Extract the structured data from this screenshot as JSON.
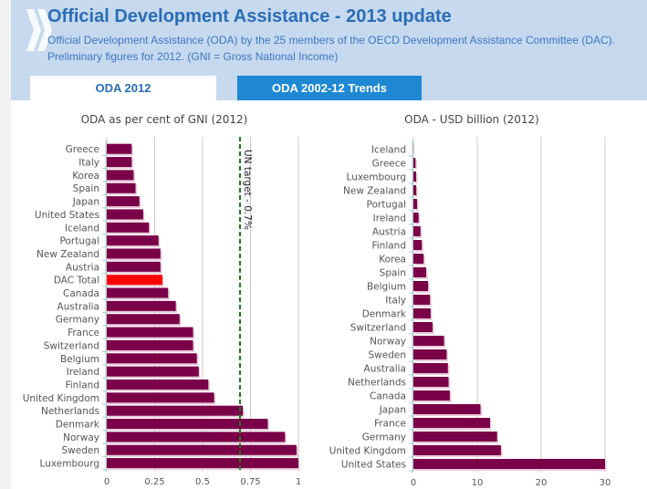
{
  "header": {
    "title": "Official Development Assistance - 2013 update",
    "subtitle": "Official Development Assistance (ODA) by the 25 members of the OECD Development Assistance Committee (DAC). Preliminary figures for 2012. (GNI = Gross National Income)",
    "logo_icon": "chevrons-right-icon"
  },
  "tabs": [
    {
      "label": "ODA 2012",
      "active": true
    },
    {
      "label": "ODA 2002-12 Trends",
      "active": false
    }
  ],
  "colors": {
    "bar": "#7a0048",
    "highlight": "#ff0000",
    "target_line": "#1a7a1a",
    "header_bg": "#c6d9ef",
    "title": "#2a6db5",
    "tab_inactive": "#1e88d3"
  },
  "chart_data": [
    {
      "type": "bar",
      "orientation": "horizontal",
      "title": "ODA as per cent of GNI (2012)",
      "xlabel": "",
      "ylabel": "",
      "xlim": [
        0,
        1
      ],
      "xticks": [
        "0",
        "0.25",
        "0.5",
        "0.75",
        "1"
      ],
      "xtick_values": [
        0,
        0.25,
        0.5,
        0.75,
        1
      ],
      "grid": true,
      "categories": [
        "Greece",
        "Italy",
        "Korea",
        "Spain",
        "Japan",
        "United States",
        "Iceland",
        "Portugal",
        "New Zealand",
        "Austria",
        "DAC Total",
        "Canada",
        "Australia",
        "Germany",
        "France",
        "Switzerland",
        "Belgium",
        "Ireland",
        "Finland",
        "United Kingdom",
        "Netherlands",
        "Denmark",
        "Norway",
        "Sweden",
        "Luxembourg"
      ],
      "values": [
        0.13,
        0.13,
        0.14,
        0.15,
        0.17,
        0.19,
        0.22,
        0.27,
        0.28,
        0.28,
        0.29,
        0.32,
        0.36,
        0.38,
        0.45,
        0.45,
        0.47,
        0.48,
        0.53,
        0.56,
        0.71,
        0.84,
        0.93,
        0.99,
        1.0
      ],
      "highlight_category": "DAC Total",
      "annotations": [
        {
          "type": "vline",
          "value": 0.7,
          "label": "UN target - 0.7%",
          "style": "dashed"
        }
      ]
    },
    {
      "type": "bar",
      "orientation": "horizontal",
      "title": "ODA - USD billion (2012)",
      "xlabel": "",
      "ylabel": "",
      "xlim": [
        0,
        30
      ],
      "xticks": [
        "0",
        "10",
        "20",
        "30"
      ],
      "xtick_values": [
        0,
        10,
        20,
        30
      ],
      "grid": true,
      "categories": [
        "Iceland",
        "Greece",
        "Luxembourg",
        "New Zealand",
        "Portugal",
        "Ireland",
        "Austria",
        "Finland",
        "Korea",
        "Spain",
        "Belgium",
        "Italy",
        "Denmark",
        "Switzerland",
        "Norway",
        "Sweden",
        "Australia",
        "Netherlands",
        "Canada",
        "Japan",
        "France",
        "Germany",
        "United Kingdom",
        "United States"
      ],
      "values": [
        0.03,
        0.33,
        0.43,
        0.45,
        0.58,
        0.81,
        1.11,
        1.32,
        1.6,
        2.0,
        2.3,
        2.6,
        2.7,
        3.0,
        4.8,
        5.2,
        5.4,
        5.5,
        5.7,
        10.5,
        12.0,
        13.1,
        13.7,
        30.5
      ]
    }
  ]
}
